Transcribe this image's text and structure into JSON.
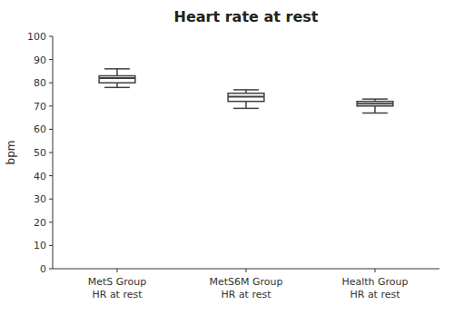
{
  "chart_data": {
    "type": "box",
    "title": "Heart rate at rest",
    "ylabel": "bpm",
    "categories": [
      "MetS Group\nHR at rest",
      "MetS6M Group\nHR at rest",
      "Health Group\nHR at rest"
    ],
    "median": [
      82,
      74,
      71
    ],
    "q1": [
      80,
      72,
      70
    ],
    "q3": [
      83,
      75.5,
      72
    ],
    "whisker_low": [
      78,
      69,
      67
    ],
    "whisker_high": [
      86,
      77,
      73
    ],
    "color": "#404040",
    "ylim": [
      0,
      100
    ],
    "yticks": [
      0,
      10,
      20,
      30,
      40,
      50,
      60,
      70,
      80,
      90,
      100
    ],
    "grid": false
  }
}
